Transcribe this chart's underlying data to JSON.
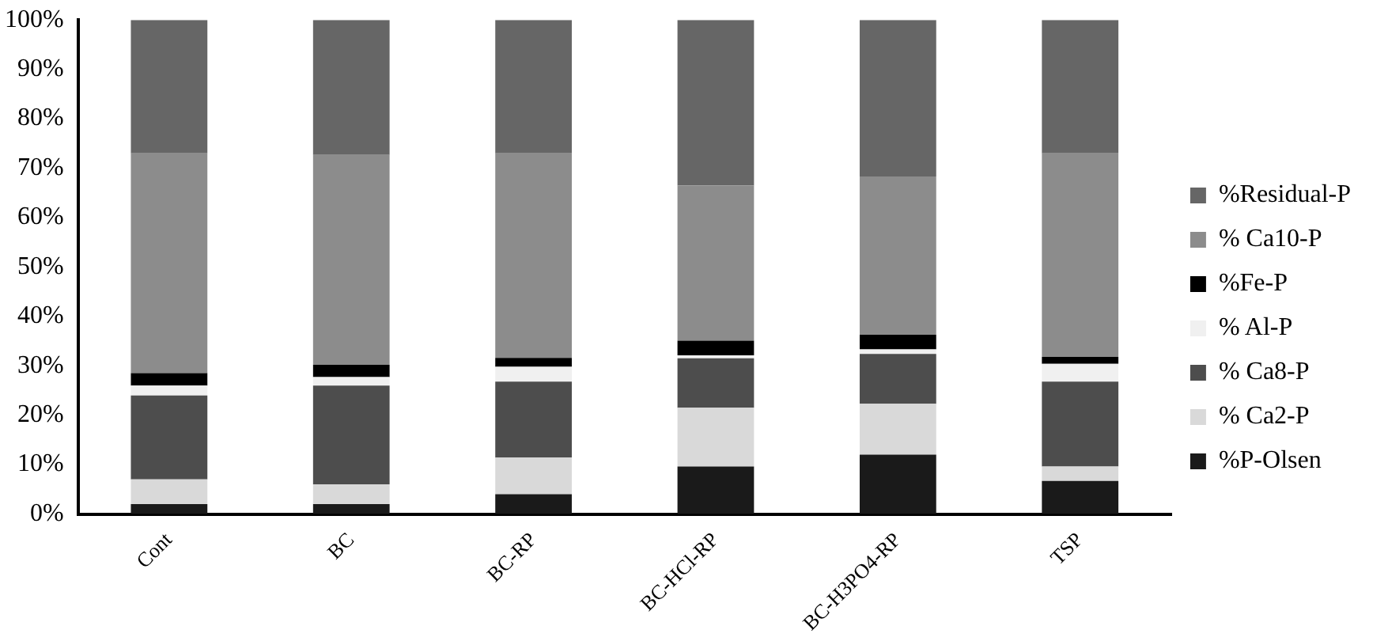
{
  "chart_data": {
    "type": "bar",
    "stacked": true,
    "categories": [
      "Cont",
      "BC",
      "BC-RP",
      "BC-HCl-RP",
      "BC-H3PO4-RP",
      "TSP"
    ],
    "series": [
      {
        "name": "%P-Olsen",
        "color": "#1a1a1a",
        "values": [
          2,
          2,
          4,
          9.6,
          12,
          6.7
        ]
      },
      {
        "name": "% Ca2-P",
        "color": "#d9d9d9",
        "values": [
          5,
          4,
          7.4,
          11.9,
          10.3,
          2.9
        ]
      },
      {
        "name": "% Ca8-P",
        "color": "#4d4d4d",
        "values": [
          17,
          20,
          15.4,
          10,
          10.1,
          17.2
        ]
      },
      {
        "name": "% Al-P",
        "color": "#f0f0f0",
        "values": [
          2,
          1.7,
          3,
          0.6,
          0.9,
          3.6
        ]
      },
      {
        "name": "%Fe-P",
        "color": "#000000",
        "values": [
          2.5,
          2.5,
          1.8,
          3,
          3,
          1.4
        ]
      },
      {
        "name": "% Ca10-P",
        "color": "#8c8c8c",
        "values": [
          44.5,
          42.5,
          41.4,
          31.4,
          32,
          41.2
        ]
      },
      {
        "name": "%Residual-P",
        "color": "#666666",
        "values": [
          27,
          27.3,
          27,
          33.5,
          31.7,
          27
        ]
      }
    ],
    "ylim": [
      0,
      100
    ],
    "yticks": [
      {
        "value": 0,
        "label": "0%"
      },
      {
        "value": 10,
        "label": "10%"
      },
      {
        "value": 20,
        "label": "20%"
      },
      {
        "value": 30,
        "label": "30%"
      },
      {
        "value": 40,
        "label": "40%"
      },
      {
        "value": 50,
        "label": "50%"
      },
      {
        "value": 60,
        "label": "60%"
      },
      {
        "value": 70,
        "label": "70%"
      },
      {
        "value": 80,
        "label": "80%"
      },
      {
        "value": 90,
        "label": "90%"
      },
      {
        "value": 100,
        "label": "100%"
      }
    ],
    "grid": false,
    "legend": "right"
  }
}
